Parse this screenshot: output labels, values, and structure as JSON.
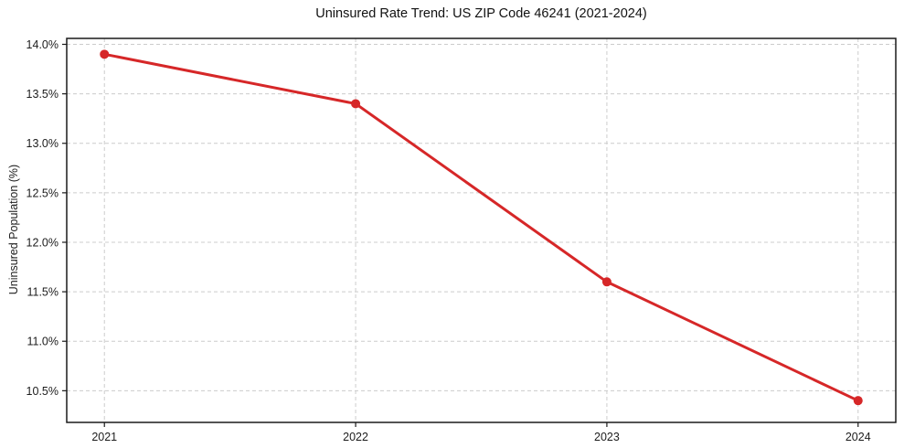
{
  "chart_data": {
    "type": "line",
    "title": "Uninsured Rate Trend: US ZIP Code 46241 (2021-2024)",
    "xlabel": "",
    "ylabel": "Uninsured Population (%)",
    "x": [
      2021,
      2022,
      2023,
      2024
    ],
    "values": [
      13.9,
      13.4,
      11.6,
      10.4
    ],
    "xticks": [
      2021,
      2022,
      2023,
      2024
    ],
    "xtick_labels": [
      "2021",
      "2022",
      "2023",
      "2024"
    ],
    "yticks": [
      10.5,
      11.0,
      11.5,
      12.0,
      12.5,
      13.0,
      13.5,
      14.0
    ],
    "ytick_labels": [
      "10.5%",
      "11.0%",
      "11.5%",
      "12.0%",
      "12.5%",
      "13.0%",
      "13.5%",
      "14.0%"
    ],
    "xlim": [
      2020.85,
      2024.15
    ],
    "ylim": [
      10.18,
      14.06
    ],
    "grid": true,
    "grid_style": "dashed",
    "legend": false,
    "marker": "o",
    "line_color": "#d62728",
    "grid_color": "#cccccc",
    "spine_color": "#1a1a1a",
    "tick_label_color": "#1c1c1c",
    "title_color": "#111111"
  }
}
